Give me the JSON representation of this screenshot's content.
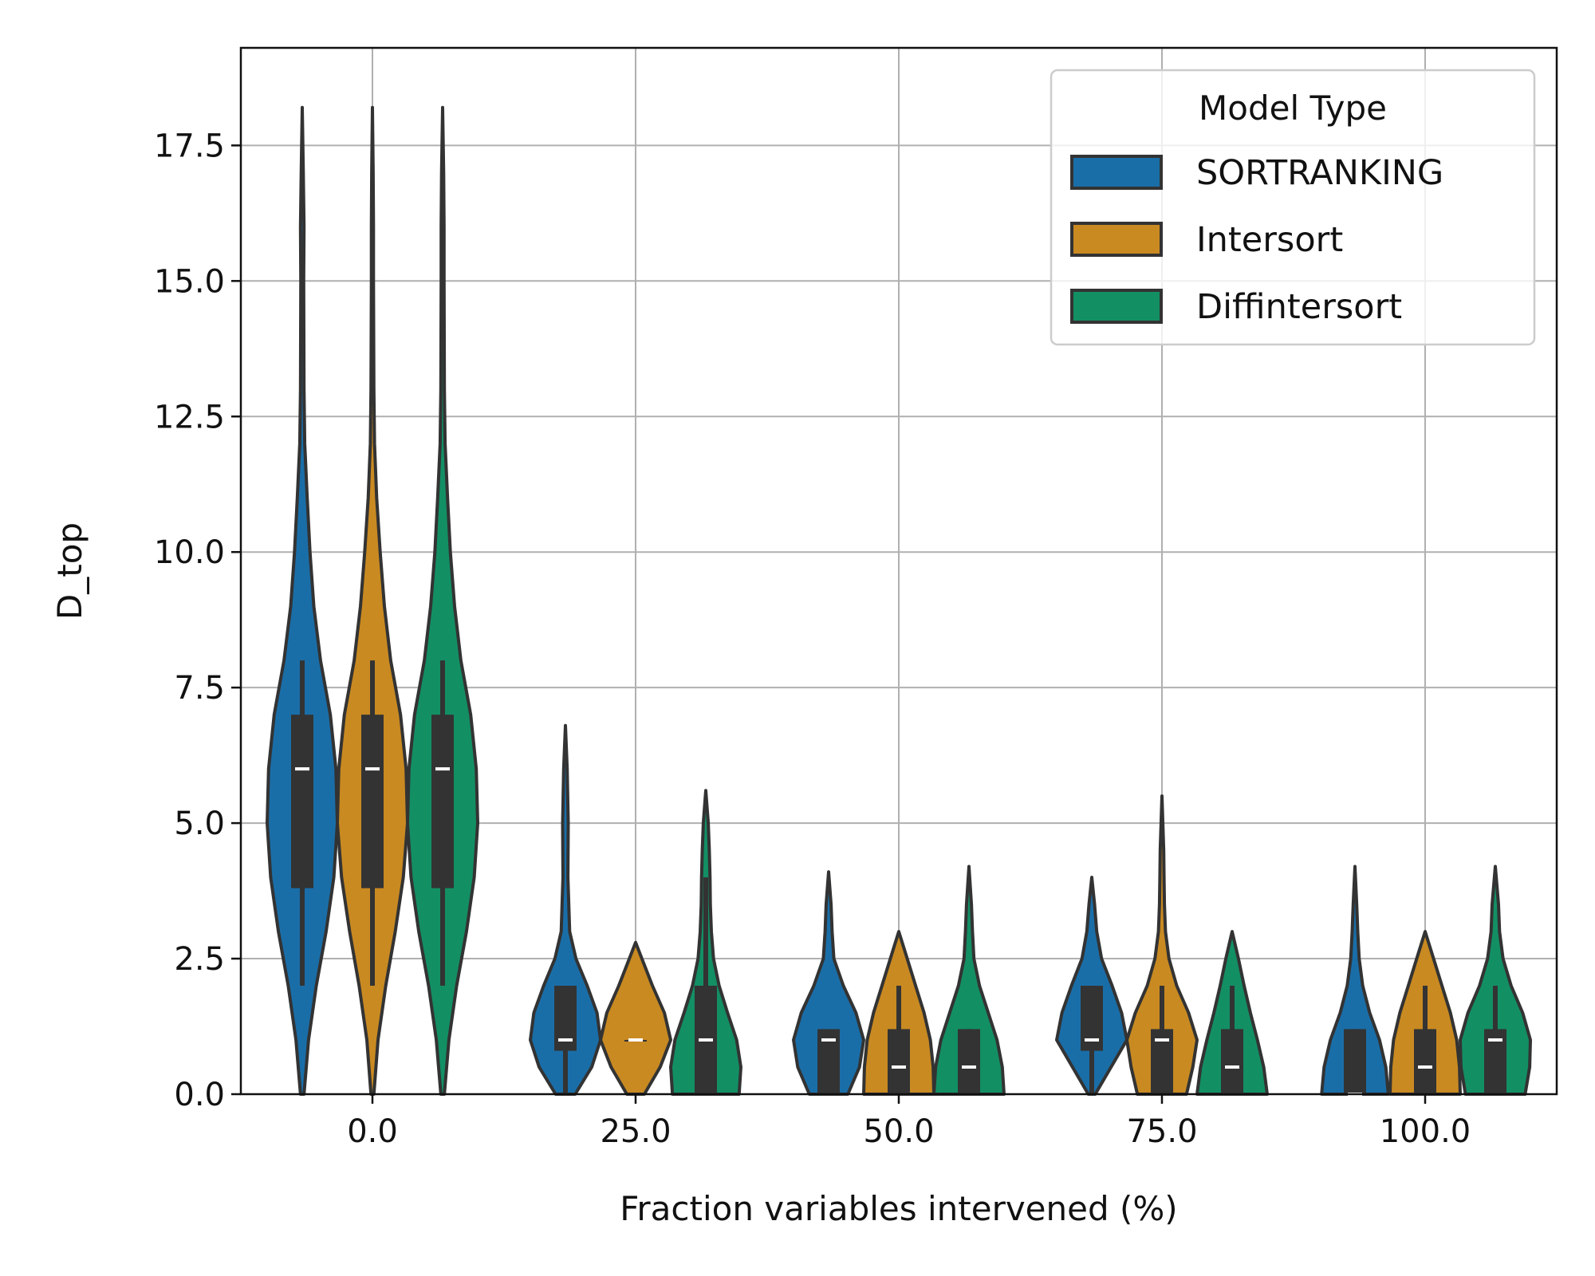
{
  "chart_data": {
    "type": "violin",
    "title": "",
    "xlabel": "Fraction variables intervened (%)",
    "ylabel": "D_top",
    "categories": [
      "0.0",
      "25.0",
      "50.0",
      "75.0",
      "100.0"
    ],
    "ylim": [
      0,
      19.3
    ],
    "yticks": [
      "0.0",
      "2.5",
      "5.0",
      "7.5",
      "10.0",
      "12.5",
      "15.0",
      "17.5"
    ],
    "grid": true,
    "legend": {
      "title": "Model Type",
      "placement": "top-right",
      "entries": [
        "SORTRANKING",
        "Intersort",
        "Diffintersort"
      ]
    },
    "colors": {
      "SORTRANKING": "#1a6ea8",
      "Intersort": "#c98a22",
      "Diffintersort": "#138f64",
      "edge": "#333333",
      "grid": "#b0b0b0"
    },
    "series": [
      {
        "name": "SORTRANKING",
        "groups": [
          {
            "min": 0,
            "max": 18.2,
            "whisker": [
              2,
              8
            ],
            "q1": 3.8,
            "median": 6,
            "q3": 7,
            "profile": [
              [
                0,
                0.05
              ],
              [
                1,
                0.18
              ],
              [
                2,
                0.4
              ],
              [
                3,
                0.68
              ],
              [
                4,
                0.9
              ],
              [
                5,
                1.0
              ],
              [
                6,
                0.96
              ],
              [
                7,
                0.8
              ],
              [
                8,
                0.52
              ],
              [
                9,
                0.33
              ],
              [
                10,
                0.22
              ],
              [
                11,
                0.14
              ],
              [
                12,
                0.07
              ],
              [
                13,
                0.05
              ],
              [
                15,
                0.04
              ],
              [
                16,
                0.05
              ],
              [
                17,
                0.03
              ],
              [
                18.2,
                0.0
              ]
            ]
          },
          {
            "min": 0,
            "max": 6.8,
            "whisker": [
              0,
              2
            ],
            "q1": 0.8,
            "median": 1,
            "q3": 2,
            "profile": [
              [
                0,
                0.28
              ],
              [
                0.5,
                0.75
              ],
              [
                1,
                1.0
              ],
              [
                1.5,
                0.9
              ],
              [
                2,
                0.62
              ],
              [
                2.5,
                0.3
              ],
              [
                3,
                0.12
              ],
              [
                4,
                0.07
              ],
              [
                5,
                0.08
              ],
              [
                6,
                0.05
              ],
              [
                6.8,
                0.0
              ]
            ]
          },
          {
            "min": 0,
            "max": 4.1,
            "whisker": [
              0,
              1
            ],
            "q1": 0,
            "median": 1,
            "q3": 1.2,
            "profile": [
              [
                0,
                0.55
              ],
              [
                0.5,
                0.88
              ],
              [
                1,
                1.0
              ],
              [
                1.5,
                0.78
              ],
              [
                2,
                0.42
              ],
              [
                2.5,
                0.15
              ],
              [
                3,
                0.1
              ],
              [
                3.5,
                0.07
              ],
              [
                4.1,
                0.0
              ]
            ]
          },
          {
            "min": 0,
            "max": 4.0,
            "whisker": [
              0,
              2
            ],
            "q1": 0.8,
            "median": 1,
            "q3": 2,
            "profile": [
              [
                0,
                0.1
              ],
              [
                0.5,
                0.55
              ],
              [
                1,
                1.0
              ],
              [
                1.5,
                0.85
              ],
              [
                2,
                0.58
              ],
              [
                2.5,
                0.28
              ],
              [
                3,
                0.14
              ],
              [
                3.5,
                0.08
              ],
              [
                4.0,
                0.0
              ]
            ]
          },
          {
            "min": 0,
            "max": 4.2,
            "whisker": [
              0,
              1.2
            ],
            "q1": 0,
            "median": 0,
            "q3": 1.2,
            "profile": [
              [
                0,
                0.95
              ],
              [
                0.5,
                0.88
              ],
              [
                1,
                0.7
              ],
              [
                1.5,
                0.42
              ],
              [
                2,
                0.22
              ],
              [
                2.5,
                0.12
              ],
              [
                3,
                0.08
              ],
              [
                3.5,
                0.05
              ],
              [
                4.2,
                0.0
              ]
            ]
          }
        ]
      },
      {
        "name": "Intersort",
        "groups": [
          {
            "min": 0,
            "max": 18.2,
            "whisker": [
              2,
              8
            ],
            "q1": 3.8,
            "median": 6,
            "q3": 7,
            "profile": [
              [
                0,
                0.04
              ],
              [
                1,
                0.16
              ],
              [
                2,
                0.38
              ],
              [
                3,
                0.65
              ],
              [
                4,
                0.88
              ],
              [
                5,
                1.0
              ],
              [
                6,
                0.96
              ],
              [
                7,
                0.8
              ],
              [
                8,
                0.52
              ],
              [
                9,
                0.34
              ],
              [
                10,
                0.22
              ],
              [
                11,
                0.12
              ],
              [
                12,
                0.06
              ],
              [
                13,
                0.04
              ],
              [
                15,
                0.03
              ],
              [
                16,
                0.03
              ],
              [
                17,
                0.02
              ],
              [
                18.2,
                0.0
              ]
            ]
          },
          {
            "min": 0,
            "max": 2.8,
            "whisker": [
              1,
              1
            ],
            "q1": 1,
            "median": 1,
            "q3": 1,
            "profile": [
              [
                0,
                0.25
              ],
              [
                0.5,
                0.7
              ],
              [
                1,
                1.0
              ],
              [
                1.5,
                0.82
              ],
              [
                2,
                0.48
              ],
              [
                2.5,
                0.18
              ],
              [
                2.8,
                0.0
              ]
            ]
          },
          {
            "min": 0,
            "max": 3.0,
            "whisker": [
              0,
              2
            ],
            "q1": 0,
            "median": 0.5,
            "q3": 1.2,
            "profile": [
              [
                0,
                1.0
              ],
              [
                0.5,
                0.98
              ],
              [
                1,
                0.9
              ],
              [
                1.5,
                0.72
              ],
              [
                2,
                0.48
              ],
              [
                2.5,
                0.24
              ],
              [
                3.0,
                0.0
              ]
            ]
          },
          {
            "min": 0,
            "max": 5.5,
            "whisker": [
              0,
              2
            ],
            "q1": 0,
            "median": 1,
            "q3": 1.2,
            "profile": [
              [
                0,
                0.7
              ],
              [
                0.5,
                0.88
              ],
              [
                1,
                1.0
              ],
              [
                1.5,
                0.76
              ],
              [
                2,
                0.42
              ],
              [
                2.5,
                0.2
              ],
              [
                3,
                0.1
              ],
              [
                3.5,
                0.07
              ],
              [
                4,
                0.06
              ],
              [
                4.5,
                0.05
              ],
              [
                5.5,
                0.0
              ]
            ]
          },
          {
            "min": 0,
            "max": 3.0,
            "whisker": [
              0,
              2
            ],
            "q1": 0,
            "median": 0.5,
            "q3": 1.2,
            "profile": [
              [
                0,
                1.0
              ],
              [
                0.5,
                0.98
              ],
              [
                1,
                0.9
              ],
              [
                1.5,
                0.72
              ],
              [
                2,
                0.48
              ],
              [
                2.5,
                0.24
              ],
              [
                3.0,
                0.0
              ]
            ]
          }
        ]
      },
      {
        "name": "Diffintersort",
        "groups": [
          {
            "min": 0,
            "max": 18.2,
            "whisker": [
              2,
              8
            ],
            "q1": 3.8,
            "median": 6,
            "q3": 7,
            "profile": [
              [
                0,
                0.05
              ],
              [
                1,
                0.18
              ],
              [
                2,
                0.4
              ],
              [
                3,
                0.68
              ],
              [
                4,
                0.9
              ],
              [
                5,
                1.0
              ],
              [
                6,
                0.96
              ],
              [
                7,
                0.8
              ],
              [
                8,
                0.52
              ],
              [
                9,
                0.34
              ],
              [
                10,
                0.22
              ],
              [
                11,
                0.14
              ],
              [
                12,
                0.07
              ],
              [
                13,
                0.05
              ],
              [
                15,
                0.04
              ],
              [
                16,
                0.04
              ],
              [
                17,
                0.03
              ],
              [
                18.2,
                0.0
              ]
            ]
          },
          {
            "min": 0,
            "max": 5.6,
            "whisker": [
              0,
              4
            ],
            "q1": 0,
            "median": 1,
            "q3": 2,
            "profile": [
              [
                0,
                0.95
              ],
              [
                0.5,
                1.0
              ],
              [
                1,
                0.88
              ],
              [
                1.5,
                0.62
              ],
              [
                2,
                0.38
              ],
              [
                2.5,
                0.22
              ],
              [
                3,
                0.16
              ],
              [
                3.5,
                0.13
              ],
              [
                4,
                0.12
              ],
              [
                4.5,
                0.1
              ],
              [
                5,
                0.07
              ],
              [
                5.6,
                0.0
              ]
            ]
          },
          {
            "min": 0,
            "max": 4.2,
            "whisker": [
              0,
              1.2
            ],
            "q1": 0,
            "median": 0.5,
            "q3": 1.2,
            "profile": [
              [
                0,
                1.0
              ],
              [
                0.5,
                0.95
              ],
              [
                1,
                0.8
              ],
              [
                1.5,
                0.55
              ],
              [
                2,
                0.3
              ],
              [
                2.5,
                0.14
              ],
              [
                3,
                0.1
              ],
              [
                3.5,
                0.07
              ],
              [
                4.2,
                0.0
              ]
            ]
          },
          {
            "min": 0,
            "max": 3.0,
            "whisker": [
              0,
              2
            ],
            "q1": 0,
            "median": 0.5,
            "q3": 1.2,
            "profile": [
              [
                0,
                1.0
              ],
              [
                0.5,
                0.9
              ],
              [
                1,
                0.72
              ],
              [
                1.5,
                0.52
              ],
              [
                2,
                0.34
              ],
              [
                2.5,
                0.18
              ],
              [
                3.0,
                0.0
              ]
            ]
          },
          {
            "min": 0,
            "max": 4.2,
            "whisker": [
              0,
              2
            ],
            "q1": 0,
            "median": 1,
            "q3": 1.2,
            "profile": [
              [
                0,
                0.85
              ],
              [
                0.5,
                0.98
              ],
              [
                1,
                1.0
              ],
              [
                1.5,
                0.78
              ],
              [
                2,
                0.45
              ],
              [
                2.5,
                0.22
              ],
              [
                3,
                0.12
              ],
              [
                3.5,
                0.09
              ],
              [
                4.2,
                0.0
              ]
            ]
          }
        ]
      }
    ]
  }
}
